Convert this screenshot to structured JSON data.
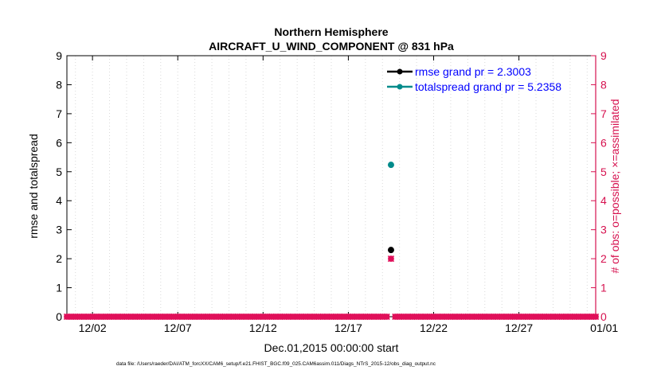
{
  "chart_data": {
    "type": "scatter",
    "title": "Northern Hemisphere",
    "subtitle": "AIRCRAFT_U_WIND_COMPONENT @ 831 hPa",
    "xlabel": "Dec.01,2015 00:00:00 start",
    "ylabel_left": "rmse and totalspread",
    "ylabel_right": "# of obs: o=possible; ×=assimilated",
    "footnote": "data file: /Users/raeder/DAI/ATM_forcXX/CAM6_setup/f.e21.FHIST_BGC.f09_025.CAM6assim.011/Diags_NTrS_2015-12/obs_diag_output.nc",
    "xlim": [
      0.5,
      31.5
    ],
    "ylim_left": [
      0,
      9
    ],
    "ylim_right": [
      0,
      9
    ],
    "x_ticks": [
      {
        "value": 2,
        "label": "12/02"
      },
      {
        "value": 7,
        "label": "12/07"
      },
      {
        "value": 12,
        "label": "12/12"
      },
      {
        "value": 17,
        "label": "12/17"
      },
      {
        "value": 22,
        "label": "12/22"
      },
      {
        "value": 27,
        "label": "12/27"
      },
      {
        "value": 32,
        "label": "01/01"
      }
    ],
    "y_ticks": [
      0,
      1,
      2,
      3,
      4,
      5,
      6,
      7,
      8,
      9
    ],
    "grid": "vertical dotted at day ticks",
    "legend_position": "top-right",
    "series": [
      {
        "name": "rmse grand pr = 2.3003",
        "axis": "left",
        "color": "#000000",
        "marker": "circle",
        "points": [
          {
            "x": 19.5,
            "y": 2.3003
          }
        ]
      },
      {
        "name": "totalspread grand pr = 5.2358",
        "axis": "left",
        "color": "#008b8b",
        "marker": "circle",
        "points": [
          {
            "x": 19.5,
            "y": 5.2358
          }
        ]
      }
    ],
    "obs_counts": {
      "axis": "right",
      "color": "#e0105a",
      "x_start": 0.5,
      "x_step": 0.25,
      "count": 125,
      "nonzero": [
        {
          "x": 19.5,
          "possible": 2,
          "assimilated": 2
        }
      ]
    }
  },
  "colors": {
    "axis": "#000000",
    "right_axis": "#d6114f",
    "legend_text": "#0000ff",
    "grid": "#d9d9d9"
  }
}
